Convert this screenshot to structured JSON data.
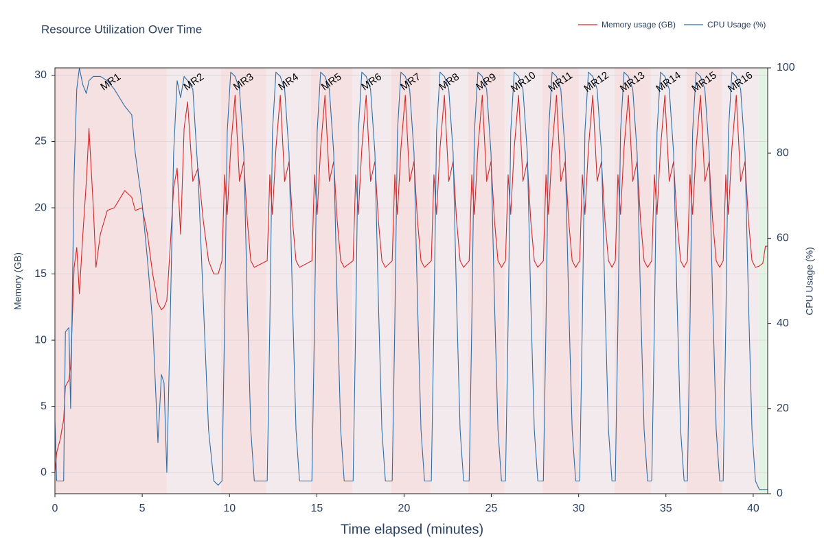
{
  "chart_data": {
    "type": "line",
    "title": "Resource Utilization Over Time",
    "x_label": "Time elapsed (minutes)",
    "y_label": "Memory (GB)",
    "y2_label": "CPU Usage (%)",
    "xlim": [
      0,
      40.83
    ],
    "xticks": [
      0,
      5,
      10,
      15,
      20,
      25,
      30,
      35,
      40
    ],
    "ylim": [
      -1.6,
      30.57
    ],
    "yticks": [
      0,
      5,
      10,
      15,
      20,
      25,
      30
    ],
    "y2lim": [
      0,
      100
    ],
    "y2ticks": [
      0,
      20,
      40,
      60,
      80,
      100
    ],
    "grid": true,
    "legend": "top-right",
    "phases": [
      {
        "label": "MR1",
        "start": 0,
        "end": 6.41,
        "color": "#f5e0e2"
      },
      {
        "label": "MR2",
        "start": 6.41,
        "end": 9.52,
        "color": "#f3eaee"
      },
      {
        "label": "MR3",
        "start": 9.52,
        "end": 12.11,
        "color": "#f5e0e2"
      },
      {
        "label": "MR4",
        "start": 12.11,
        "end": 14.67,
        "color": "#f3eaee"
      },
      {
        "label": "MR5",
        "start": 14.67,
        "end": 17.03,
        "color": "#f5e0e2"
      },
      {
        "label": "MR6",
        "start": 17.03,
        "end": 19.27,
        "color": "#f3eaee"
      },
      {
        "label": "MR7",
        "start": 19.27,
        "end": 21.51,
        "color": "#f5e0e2"
      },
      {
        "label": "MR8",
        "start": 21.51,
        "end": 23.68,
        "color": "#f3eaee"
      },
      {
        "label": "MR9",
        "start": 23.68,
        "end": 25.76,
        "color": "#f5e0e2"
      },
      {
        "label": "MR10",
        "start": 25.76,
        "end": 27.93,
        "color": "#f3eaee"
      },
      {
        "label": "MR11",
        "start": 27.93,
        "end": 30.01,
        "color": "#f5e0e2"
      },
      {
        "label": "MR12",
        "start": 30.01,
        "end": 32.05,
        "color": "#f3eaee"
      },
      {
        "label": "MR13",
        "start": 32.05,
        "end": 34.14,
        "color": "#f5e0e2"
      },
      {
        "label": "MR14",
        "start": 34.14,
        "end": 36.18,
        "color": "#f3eaee"
      },
      {
        "label": "MR15",
        "start": 36.18,
        "end": 38.23,
        "color": "#f5e0e2"
      },
      {
        "label": "MR16",
        "start": 38.23,
        "end": 40.31,
        "color": "#f3eaee"
      },
      {
        "label": null,
        "start": 40.31,
        "end": 40.83,
        "color": "#e2f3e3"
      }
    ],
    "x": [
      0,
      0.1,
      0.3,
      0.5,
      0.6,
      0.8,
      0.9,
      1.1,
      1.25,
      1.4,
      1.6,
      1.8,
      1.95,
      2.2,
      2.35,
      2.6,
      3.0,
      3.4,
      4.0,
      4.4,
      4.6,
      5.0,
      5.3,
      5.6,
      5.9,
      6.1,
      6.25,
      6.41,
      6.6,
      6.8,
      7.0,
      7.2,
      7.4,
      7.6,
      7.9,
      8.2,
      8.5,
      8.8,
      9.1,
      9.35,
      9.57,
      9.72,
      9.87,
      10.07,
      10.32,
      10.57,
      10.82,
      11.02,
      11.22,
      11.42,
      12.16,
      12.31,
      12.46,
      12.66,
      12.91,
      13.16,
      13.41,
      13.61,
      13.81,
      14.01,
      14.72,
      14.87,
      15.02,
      15.22,
      15.47,
      15.72,
      15.97,
      16.17,
      16.37,
      16.57,
      17.08,
      17.23,
      17.38,
      17.58,
      17.83,
      18.08,
      18.33,
      18.53,
      18.73,
      18.93,
      19.32,
      19.47,
      19.62,
      19.82,
      20.07,
      20.32,
      20.57,
      20.77,
      20.97,
      21.17,
      21.56,
      21.71,
      21.86,
      22.06,
      22.31,
      22.56,
      22.81,
      23.01,
      23.21,
      23.41,
      23.73,
      23.88,
      24.03,
      24.23,
      24.48,
      24.73,
      24.98,
      25.18,
      25.38,
      25.58,
      25.81,
      25.96,
      26.11,
      26.31,
      26.56,
      26.81,
      27.06,
      27.26,
      27.46,
      27.66,
      27.98,
      28.13,
      28.28,
      28.48,
      28.73,
      28.98,
      29.23,
      29.43,
      29.63,
      29.83,
      30.06,
      30.21,
      30.36,
      30.56,
      30.81,
      31.06,
      31.31,
      31.51,
      31.71,
      31.91,
      32.1,
      32.25,
      32.4,
      32.6,
      32.85,
      33.1,
      33.35,
      33.55,
      33.75,
      33.95,
      34.19,
      34.34,
      34.49,
      34.69,
      34.94,
      35.19,
      35.44,
      35.64,
      35.84,
      36.04,
      36.23,
      36.38,
      36.53,
      36.73,
      36.98,
      37.23,
      37.48,
      37.68,
      37.88,
      38.08,
      38.28,
      38.43,
      38.58,
      38.78,
      39.03,
      39.28,
      39.53,
      39.73,
      39.93,
      40.13,
      40.35,
      40.55,
      40.7,
      40.83
    ],
    "series": [
      {
        "name": "Memory usage (GB)",
        "color": "#d62728",
        "axis": "y",
        "values": [
          0,
          1.5,
          2.5,
          4,
          6.5,
          7,
          8,
          15.5,
          17,
          13.5,
          18,
          22,
          26,
          20,
          15.5,
          18,
          19.8,
          20,
          21.3,
          20.8,
          19.8,
          20,
          18,
          15,
          12.8,
          12.3,
          12.5,
          13,
          17,
          21.5,
          23,
          18,
          26,
          28,
          22,
          23,
          19,
          16,
          15,
          15,
          16,
          22.5,
          19.5,
          24.5,
          28.5,
          22,
          23.5,
          19,
          16,
          15.5,
          16,
          22.5,
          19.5,
          24.5,
          28.5,
          22,
          23.5,
          19,
          16,
          15.5,
          16,
          22.5,
          19.5,
          24.5,
          28.5,
          22,
          23.5,
          19,
          16,
          15.5,
          16,
          22.5,
          19.5,
          24.5,
          28.5,
          22,
          23.5,
          19,
          16,
          15.5,
          16,
          22.5,
          19.5,
          24.5,
          28.5,
          22,
          23.5,
          19,
          16,
          15.5,
          16,
          22.5,
          19.5,
          24.5,
          28.5,
          22,
          23.5,
          19,
          16,
          15.5,
          16,
          22.5,
          19.5,
          24.5,
          28.5,
          22,
          23.5,
          19,
          16,
          15.5,
          16,
          22.5,
          19.5,
          24.5,
          28.5,
          22,
          23.5,
          19,
          16,
          15.5,
          16,
          22.5,
          19.5,
          24.5,
          28.5,
          22,
          23.5,
          19,
          16,
          15.5,
          16,
          22.5,
          19.5,
          24.5,
          28.5,
          22,
          23.5,
          19,
          16,
          15.5,
          16,
          22.5,
          19.5,
          24.5,
          28.5,
          22,
          23.5,
          19,
          16,
          15.5,
          16,
          22.5,
          19.5,
          24.5,
          28.5,
          22,
          23.5,
          19,
          16,
          15.5,
          16,
          22.5,
          19.5,
          24.5,
          28.5,
          22,
          23.5,
          19,
          16,
          15.5,
          16,
          22.5,
          19.5,
          24.5,
          28.5,
          22,
          23.5,
          19,
          16,
          15.5,
          15.6,
          15.8,
          17.1,
          17.1
        ]
      },
      {
        "name": "CPU Usage (%)",
        "color": "#2e6da4",
        "axis": "y2",
        "values": [
          17,
          3,
          3,
          3,
          38,
          39,
          20,
          75,
          95,
          100,
          96,
          94,
          97,
          98,
          98,
          98,
          97,
          95,
          91,
          89,
          80,
          68,
          55,
          40,
          12,
          28,
          26,
          5,
          40,
          80,
          97,
          93,
          98,
          97,
          95,
          75,
          45,
          15,
          3,
          2,
          3,
          40,
          85,
          99,
          98,
          95,
          80,
          45,
          15,
          3,
          3,
          40,
          85,
          99,
          98,
          95,
          80,
          45,
          15,
          3,
          3,
          40,
          85,
          99,
          98,
          95,
          80,
          45,
          15,
          3,
          3,
          40,
          85,
          99,
          98,
          95,
          80,
          45,
          15,
          3,
          3,
          40,
          85,
          99,
          98,
          95,
          80,
          45,
          15,
          3,
          3,
          40,
          85,
          99,
          98,
          95,
          80,
          45,
          15,
          3,
          3,
          40,
          85,
          99,
          98,
          95,
          80,
          45,
          15,
          3,
          3,
          40,
          85,
          99,
          98,
          95,
          80,
          45,
          15,
          3,
          3,
          40,
          85,
          99,
          98,
          95,
          80,
          45,
          15,
          3,
          3,
          40,
          85,
          99,
          98,
          95,
          80,
          45,
          15,
          3,
          3,
          40,
          85,
          99,
          98,
          95,
          80,
          45,
          15,
          3,
          3,
          40,
          85,
          99,
          98,
          95,
          80,
          45,
          15,
          3,
          3,
          40,
          85,
          99,
          98,
          95,
          80,
          45,
          15,
          3,
          3,
          40,
          85,
          99,
          98,
          95,
          80,
          45,
          15,
          3,
          1,
          1,
          1,
          1
        ]
      }
    ]
  }
}
